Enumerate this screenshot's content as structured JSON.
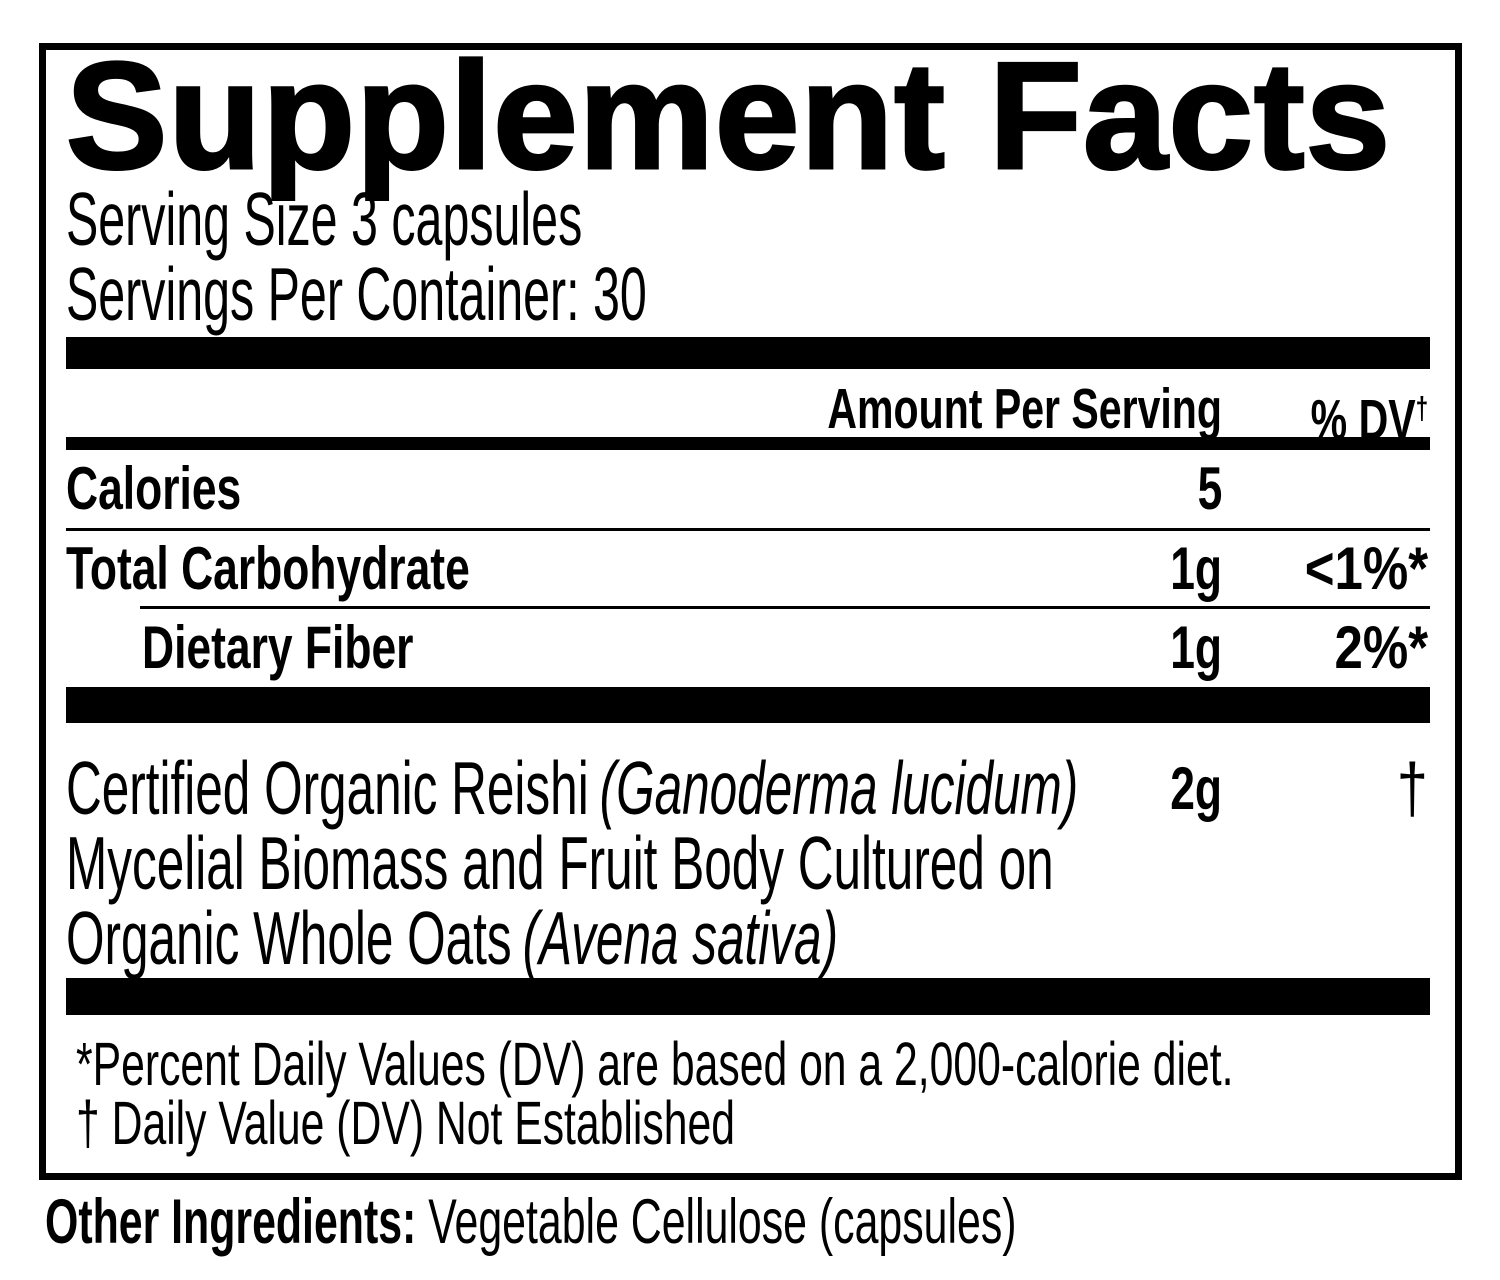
{
  "colors": {
    "text": "#000000",
    "background": "#ffffff"
  },
  "panel": {
    "title": "Supplement Facts",
    "serving_size": "Serving Size 3 capsules",
    "servings_per_container": "Servings Per Container: 30",
    "columns": {
      "amount_header": "Amount Per Serving",
      "dv_header": "% DV",
      "dv_header_sup": "†"
    },
    "rows": [
      {
        "label": "Calories",
        "amount": "5",
        "dv": ""
      },
      {
        "label": "Total Carbohydrate",
        "amount": "1g",
        "dv": "<1%*"
      },
      {
        "label": "Dietary Fiber",
        "amount": "1g",
        "dv": "2%*",
        "indented": true
      }
    ],
    "ingredient": {
      "line1": "Certified Organic Reishi",
      "line1_italic": "(Ganoderma lucidum)",
      "line2": "Mycelial Biomass and Fruit Body Cultured on",
      "line3": "Organic Whole Oats",
      "line3_italic": "(Avena sativa)",
      "amount": "2g",
      "dv": "†"
    },
    "footnotes": [
      "*Percent Daily Values (DV) are based on a 2,000-calorie diet.",
      "† Daily Value (DV) Not Established"
    ]
  },
  "other_ingredients": {
    "label": "Other Ingredients:",
    "value": "Vegetable Cellulose (capsules)"
  }
}
